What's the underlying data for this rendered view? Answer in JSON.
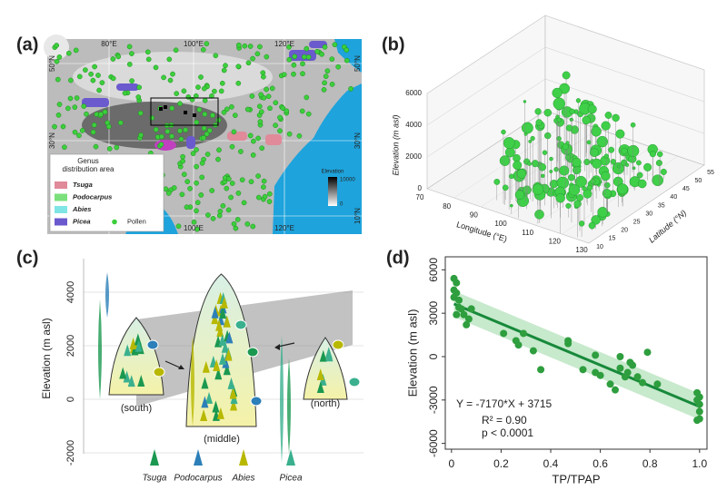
{
  "panel_a": {
    "label": "(a)",
    "lon_top": [
      "80°E",
      "100°E",
      "120°E"
    ],
    "lon_bottom": [
      "100°E",
      "120°E"
    ],
    "lat_left": [
      "50°N",
      "30°N"
    ],
    "lat_right": [
      "50°N",
      "30°N",
      "10°N"
    ],
    "legend_title": [
      "Genus",
      "distribution area"
    ],
    "legend": [
      "Tsuga",
      "Podocarpus",
      "Abies",
      "Picea"
    ],
    "pollen": "Pollen",
    "elevation_title": "Elevation",
    "elevation_max": 10000,
    "elevation_min": 0
  },
  "panel_b": {
    "label": "(b)",
    "z_title": "Elevation (m asl)",
    "zticks": [
      0,
      2000,
      4000,
      6000
    ],
    "x_title": "Longitude (°E)",
    "xticks": [
      70,
      80,
      90,
      100,
      110,
      120,
      130
    ],
    "y_title": "Latitude (°N)",
    "yticks": [
      10,
      15,
      20,
      25,
      30,
      35,
      40,
      45,
      50,
      55
    ]
  },
  "panel_c": {
    "label": "(c)",
    "y_title": "Elevation (m asl)",
    "yticks": [
      4000,
      2000,
      0,
      -2000
    ],
    "regions": [
      "(south)",
      "(middle)",
      "(north)"
    ],
    "legend": [
      "Tsuga",
      "Podocarpus",
      "Abies",
      "Picea"
    ]
  },
  "chart_data": {
    "type": "scatter",
    "panel_label": "(d)",
    "xlabel": "TP/TPAP",
    "ylabel": "Elevation (m asl)",
    "color": "#2e9e3e",
    "x": [
      0.01,
      0.02,
      0.01,
      0.02,
      0.01,
      0.03,
      0.02,
      0.04,
      0.05,
      0.07,
      0.06,
      0.03,
      0.08,
      0.21,
      0.26,
      0.27,
      0.33,
      0.29,
      0.36,
      0.47,
      0.58,
      0.53,
      0.47,
      0.68,
      0.79,
      0.73,
      0.68,
      0.72,
      0.71,
      0.58,
      0.6,
      0.77,
      0.75,
      0.7,
      0.66,
      0.64,
      0.83,
      0.99,
      1.0,
      0.99,
      1.0,
      1.0,
      1.0,
      0.99
    ],
    "values": [
      5400,
      5100,
      4600,
      4400,
      4100,
      3900,
      2900,
      3300,
      2900,
      2600,
      2200,
      3400,
      3300,
      1600,
      1100,
      800,
      400,
      1600,
      -900,
      1100,
      100,
      -900,
      900,
      0,
      300,
      -600,
      -800,
      -400,
      -1100,
      -1100,
      -1300,
      -1800,
      -1400,
      -1400,
      -2300,
      -1900,
      -1900,
      -2500,
      -2800,
      -3000,
      -3300,
      -3800,
      -4300,
      -4400
    ],
    "xlim": [
      -0.025,
      1.03
    ],
    "ylim": [
      -6400,
      6900
    ],
    "xticks": [
      0,
      0.2,
      0.4,
      0.6,
      0.8,
      {
        "value": 1,
        "label": "1.0"
      }
    ],
    "yticks": [
      -6000,
      -3000,
      0,
      3000,
      6000
    ],
    "fit": {
      "slope": -7170,
      "intercept": 3715,
      "label": "Y = -7170*X + 3715"
    },
    "annotations": [
      "R² = 0.90",
      "p < 0.0001"
    ]
  }
}
